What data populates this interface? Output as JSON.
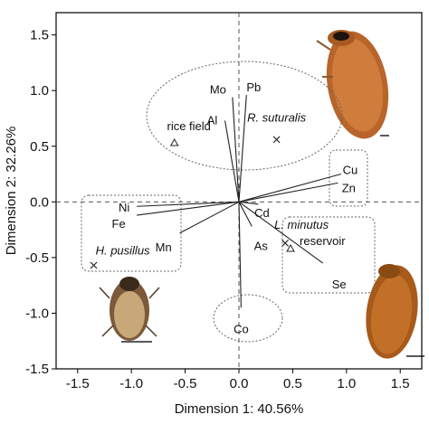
{
  "chart_data": {
    "type": "scatter",
    "title": "",
    "xlabel": "Dimension 1: 40.56%",
    "ylabel": "Dimension 2: 32.26%",
    "xlim": [
      -1.7,
      1.7
    ],
    "ylim": [
      -1.5,
      1.7
    ],
    "x_ticks": [
      -1.5,
      -1.0,
      -0.5,
      0.0,
      0.5,
      1.0,
      1.5
    ],
    "x_tick_labels": [
      "-1.5",
      "-1.0",
      "-0.5",
      "0.0",
      "0.5",
      "1.0",
      "1.5"
    ],
    "y_ticks": [
      -1.5,
      -1.0,
      -0.5,
      0.0,
      0.5,
      1.0,
      1.5
    ],
    "y_tick_labels": [
      "-1.5",
      "-1.0",
      "-0.5",
      "0.0",
      "0.5",
      "1.0",
      "1.5"
    ],
    "reference_lines": {
      "x": 0,
      "y": 0,
      "style": "dashed"
    },
    "vectors": [
      {
        "label": "Mo",
        "x": -0.06,
        "y": 0.94
      },
      {
        "label": "Pb",
        "x": 0.07,
        "y": 0.96
      },
      {
        "label": "Al",
        "x": -0.13,
        "y": 0.73
      },
      {
        "label": "Cu",
        "x": 0.95,
        "y": 0.25
      },
      {
        "label": "Zn",
        "x": 0.92,
        "y": 0.17
      },
      {
        "label": "Cd",
        "x": 0.18,
        "y": -0.02
      },
      {
        "label": "Ni",
        "x": -0.95,
        "y": -0.04
      },
      {
        "label": "Fe",
        "x": -0.95,
        "y": -0.12
      },
      {
        "label": "Mn",
        "x": -0.55,
        "y": -0.28
      },
      {
        "label": "As",
        "x": 0.12,
        "y": -0.22
      },
      {
        "label": "Se",
        "x": 0.78,
        "y": -0.55
      },
      {
        "label": "Co",
        "x": 0.02,
        "y": -0.95
      }
    ],
    "points": [
      {
        "label": "rice field",
        "x": -0.6,
        "y": 0.53,
        "marker": "triangle"
      },
      {
        "label": "R. suturalis",
        "x": 0.35,
        "y": 0.56,
        "marker": "x"
      },
      {
        "label": "H. pusillus",
        "x": -1.35,
        "y": -0.57,
        "marker": "x"
      },
      {
        "label": "L. minutus",
        "x": 0.43,
        "y": -0.37,
        "marker": "x"
      },
      {
        "label": "reservoir",
        "x": 0.48,
        "y": -0.42,
        "marker": "triangle"
      }
    ]
  }
}
